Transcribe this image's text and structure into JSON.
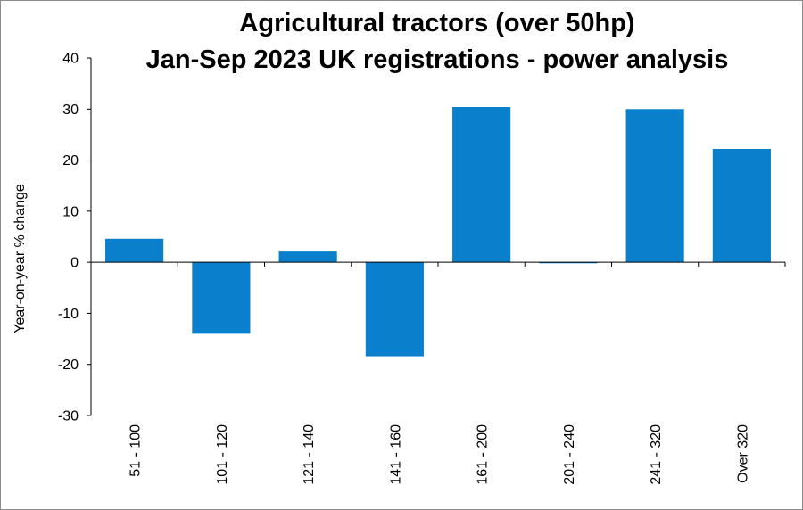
{
  "chart_data": {
    "type": "bar",
    "title_lines": [
      "Agricultural tractors (over 50hp)",
      "Jan-Sep 2023 UK registrations - power analysis"
    ],
    "ylabel": "Year-on-year  % change",
    "xlabel": "",
    "categories": [
      "51 - 100",
      "101 - 120",
      "121 - 140",
      "141 - 160",
      "161 - 200",
      "201 - 240",
      "241 - 320",
      "Over 320"
    ],
    "values": [
      4.6,
      -14.0,
      2.1,
      -18.4,
      30.4,
      -0.2,
      30.0,
      22.2
    ],
    "ylim": [
      -30,
      40
    ],
    "yticks": [
      40,
      30,
      20,
      10,
      0,
      -10,
      -20,
      -30
    ],
    "grid": false,
    "legend": "none",
    "bar_color": "#0a7fcc"
  }
}
